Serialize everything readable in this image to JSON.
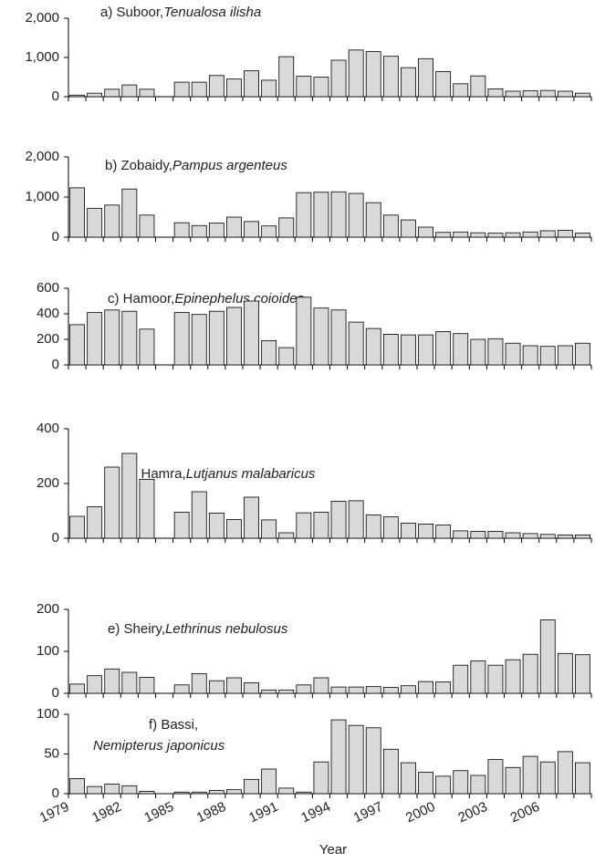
{
  "chart_data": [
    {
      "type": "bar",
      "title": "a) Suboor,",
      "species": "Tenualosa ilisha",
      "color": "#d9d9d9",
      "values": [
        40,
        90,
        190,
        300,
        190,
        null,
        370,
        370,
        540,
        450,
        660,
        420,
        1020,
        520,
        500,
        930,
        1190,
        1150,
        1030,
        740,
        970,
        640,
        330,
        530,
        200,
        140,
        150,
        160,
        140,
        90
      ],
      "ylim": [
        0,
        2000
      ],
      "yticks": [
        0,
        {
          "value": 1000,
          "label": "1,000"
        },
        {
          "value": 2000,
          "label": "2,000"
        }
      ]
    },
    {
      "type": "bar",
      "title": "b) Zobaidy,",
      "species": "Pampus argenteus",
      "color": "#d9d9d9",
      "values": [
        1230,
        720,
        800,
        1200,
        550,
        null,
        360,
        290,
        350,
        500,
        390,
        280,
        480,
        1110,
        1120,
        1130,
        1090,
        860,
        550,
        430,
        250,
        120,
        130,
        110,
        100,
        110,
        130,
        160,
        170,
        100
      ],
      "ylim": [
        0,
        2000
      ],
      "yticks": [
        0,
        {
          "value": 1000,
          "label": "1,000"
        },
        {
          "value": 2000,
          "label": "2,000"
        }
      ]
    },
    {
      "type": "bar",
      "title": "c) Hamoor,",
      "species": "Epinephelus coioides",
      "color": "#d9d9d9",
      "values": [
        315,
        410,
        430,
        420,
        280,
        null,
        410,
        395,
        420,
        450,
        500,
        190,
        135,
        530,
        445,
        430,
        335,
        285,
        240,
        235,
        235,
        260,
        245,
        200,
        205,
        170,
        150,
        145,
        150,
        170
      ],
      "ylim": [
        0,
        600
      ],
      "yticks": [
        0,
        200,
        400,
        600
      ]
    },
    {
      "type": "bar",
      "title": "d) Hamra,",
      "species": "Lutjanus malabaricus",
      "color": "#d9d9d9",
      "values": [
        80,
        115,
        260,
        310,
        215,
        null,
        95,
        170,
        92,
        68,
        150,
        67,
        20,
        93,
        95,
        135,
        137,
        85,
        78,
        55,
        52,
        48,
        27,
        25,
        25,
        20,
        17,
        14,
        12,
        12
      ],
      "ylim": [
        0,
        400
      ],
      "yticks": [
        0,
        200,
        400
      ]
    },
    {
      "type": "bar",
      "title": "e) Sheiry,",
      "species": "Lethrinus nebulosus",
      "color": "#d9d9d9",
      "values": [
        22,
        42,
        58,
        50,
        38,
        null,
        20,
        47,
        30,
        37,
        25,
        8,
        8,
        20,
        37,
        15,
        15,
        16,
        14,
        18,
        28,
        27,
        67,
        77,
        67,
        80,
        93,
        175,
        95,
        92
      ],
      "ylim": [
        0,
        200
      ],
      "yticks": [
        0,
        100,
        200
      ]
    },
    {
      "type": "bar",
      "title": "f) Bassi,",
      "species": "Nemipterus japonicus",
      "color": "#d9d9d9",
      "values": [
        19,
        9,
        12,
        10,
        3,
        null,
        2,
        2,
        4,
        5,
        18,
        31,
        7,
        2,
        40,
        93,
        86,
        83,
        56,
        39,
        27,
        22,
        29,
        23,
        43,
        33,
        47,
        40,
        53,
        39
      ],
      "ylim": [
        0,
        100
      ],
      "yticks": [
        0,
        50,
        100
      ],
      "categories": [
        "1979",
        null,
        null,
        "1982",
        null,
        null,
        "1985",
        null,
        null,
        "1988",
        null,
        null,
        "1991",
        null,
        null,
        "1994",
        null,
        null,
        "1997",
        null,
        null,
        "2000",
        null,
        null,
        "2003",
        null,
        null,
        "2006",
        null,
        null
      ],
      "xlabel": "Year"
    }
  ]
}
